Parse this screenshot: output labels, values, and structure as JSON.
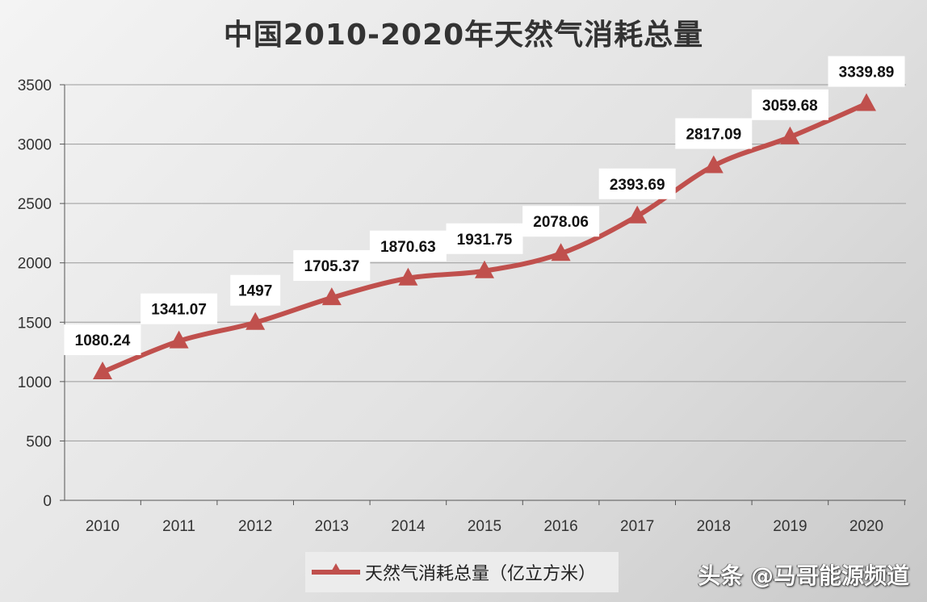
{
  "chart_data": {
    "type": "line",
    "title": "中国2010-2020年天然气消耗总量",
    "categories": [
      "2010",
      "2011",
      "2012",
      "2013",
      "2014",
      "2015",
      "2016",
      "2017",
      "2018",
      "2019",
      "2020"
    ],
    "series": [
      {
        "name": "天然气消耗总量（亿立方米）",
        "values": [
          1080.24,
          1341.07,
          1497,
          1705.37,
          1870.63,
          1931.75,
          2078.06,
          2393.69,
          2817.09,
          3059.68,
          3339.89
        ],
        "labels": [
          "1080.24",
          "1341.07",
          "1497",
          "1705.37",
          "1870.63",
          "1931.75",
          "2078.06",
          "2393.69",
          "2817.09",
          "3059.68",
          "3339.89"
        ]
      }
    ],
    "yticks": [
      "0",
      "500",
      "1000",
      "1500",
      "2000",
      "2500",
      "3000",
      "3500"
    ],
    "ylim": [
      0,
      3500
    ],
    "grid": true,
    "legend": "bottom",
    "line_color": "#c0504d"
  },
  "watermark": "头条 @马哥能源频道"
}
